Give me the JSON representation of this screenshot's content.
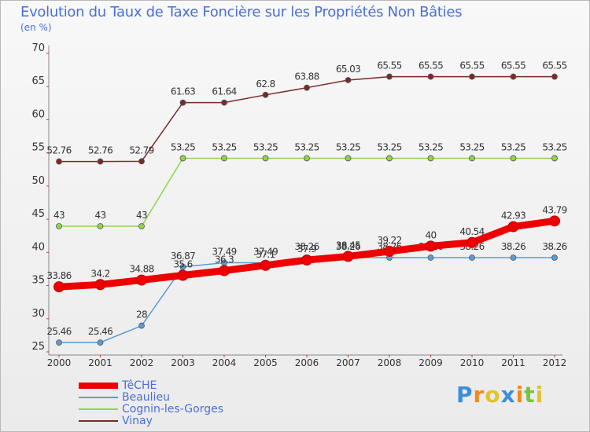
{
  "title": "Evolution du Taux de Taxe Foncière sur les Propriétés Non Bâties",
  "subtitle": "(en %)",
  "logo": {
    "text": "Proxiti",
    "letters": [
      {
        "ch": "P",
        "color": "#3a8fd8"
      },
      {
        "ch": "r",
        "color": "#f08a1c"
      },
      {
        "ch": "o",
        "color": "#e0c42a"
      },
      {
        "ch": "x",
        "color": "#3a8fd8"
      },
      {
        "ch": "i",
        "color": "#f08a1c"
      },
      {
        "ch": "t",
        "color": "#7cc23c"
      },
      {
        "ch": "i",
        "color": "#e0c42a"
      }
    ]
  },
  "chart_data": {
    "type": "line",
    "title": "Evolution du Taux de Taxe Foncière sur les Propriétés Non Bâties",
    "ylabel": "(en %)",
    "xlabel": "",
    "ylim": [
      25,
      70
    ],
    "yticks": [
      25,
      30,
      35,
      40,
      45,
      50,
      55,
      60,
      65,
      70
    ],
    "grid": false,
    "legend_position": "bottom-left",
    "x": [
      "2000",
      "2001",
      "2002",
      "2003",
      "2004",
      "2005",
      "2006",
      "2007",
      "2008",
      "2009",
      "2010",
      "2011",
      "2012"
    ],
    "series": [
      {
        "name": "Vinay",
        "color": "#7b2a2a",
        "values": [
          52.76,
          52.76,
          52.79,
          61.63,
          61.64,
          62.8,
          63.88,
          65.03,
          65.55,
          65.55,
          65.55,
          65.55,
          65.55
        ],
        "labels": [
          "52.76",
          "52.76",
          "52.79",
          "61.63",
          "61.64",
          "62.8",
          "63.88",
          "65.03",
          "65.55",
          "65.55",
          "65.55",
          "65.55",
          "65.55"
        ]
      },
      {
        "name": "Cognin-les-Gorges",
        "color": "#8fd44c",
        "values": [
          43,
          43,
          43,
          53.25,
          53.25,
          53.25,
          53.25,
          53.25,
          53.25,
          53.25,
          53.25,
          53.25,
          53.25
        ],
        "labels": [
          "43",
          "43",
          "43",
          "53.25",
          "53.25",
          "53.25",
          "53.25",
          "53.25",
          "53.25",
          "53.25",
          "53.25",
          "53.25",
          "53.25"
        ]
      },
      {
        "name": "Beaulieu",
        "color": "#5b9bd5",
        "values": [
          25.46,
          25.46,
          28,
          36.87,
          37.49,
          37.49,
          38.26,
          38.26,
          38.26,
          38.26,
          38.26,
          38.26,
          38.26
        ],
        "labels": [
          "25.46",
          "25.46",
          "28",
          "36.87",
          "37.49",
          "37.49",
          "38.26",
          "38.26",
          "38.26",
          "38.26",
          "38.26",
          "38.26",
          "38.26"
        ]
      },
      {
        "name": "TêCHE",
        "color": "#ee0000",
        "values": [
          33.86,
          34.2,
          34.88,
          35.6,
          36.3,
          37.1,
          37.9,
          38.45,
          39.22,
          40,
          40.54,
          42.93,
          43.79
        ],
        "labels": [
          "33.86",
          "34.2",
          "34.88",
          "35.6",
          "36.3",
          "37.1",
          "37.9",
          "38.45",
          "39.22",
          "40",
          "40.54",
          "42.93",
          "43.79"
        ]
      }
    ],
    "legend_order": [
      "TêCHE",
      "Beaulieu",
      "Cognin-les-Gorges",
      "Vinay"
    ]
  }
}
